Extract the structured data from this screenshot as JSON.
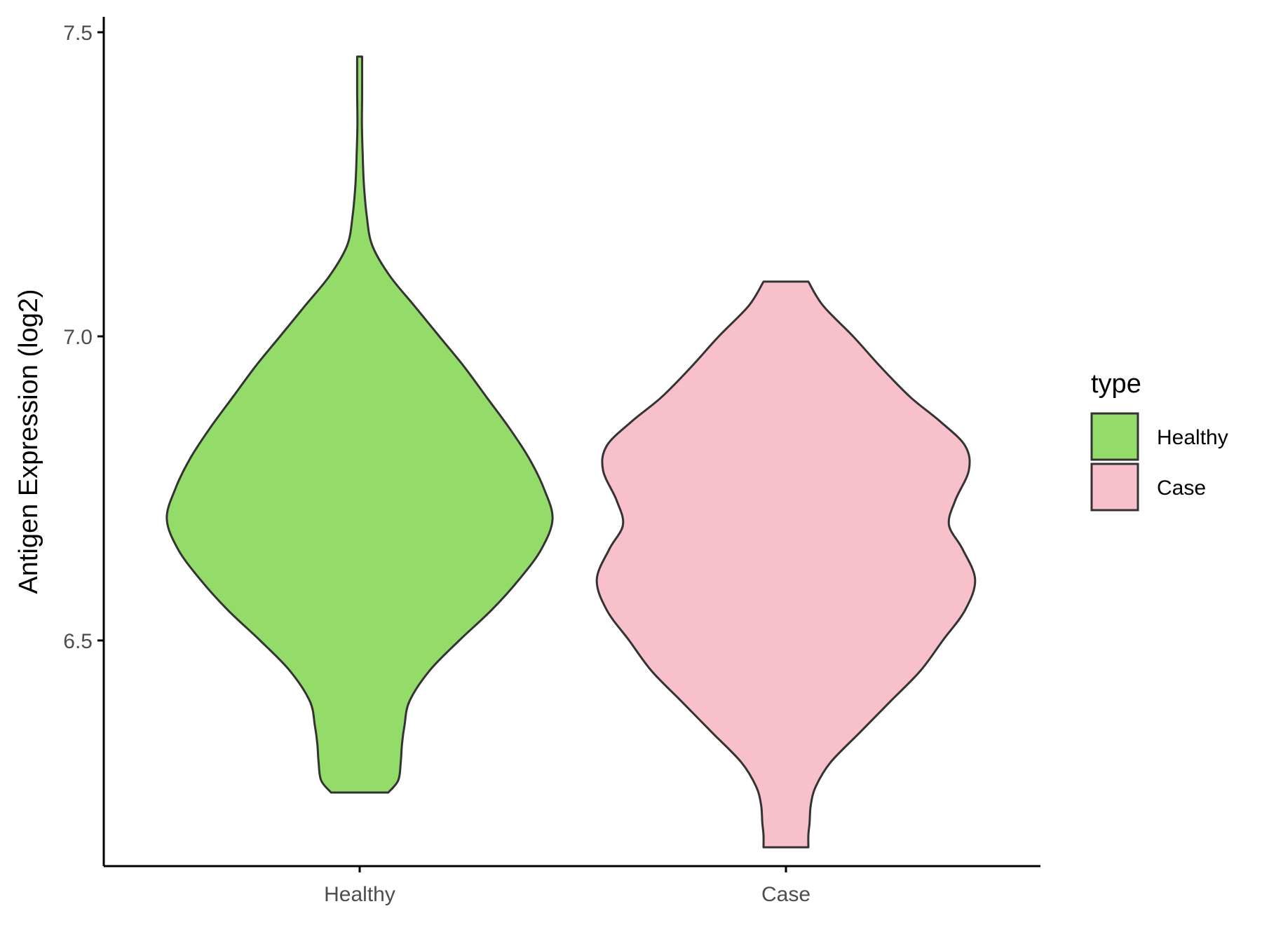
{
  "chart_data": {
    "type": "violin",
    "categories": [
      "Healthy",
      "Case"
    ],
    "ylabel": "Antigen Expression (log2)",
    "xlabel": "",
    "ylim": [
      6.1,
      7.53
    ],
    "yticks": [
      "6.5",
      "7.0",
      "7.5"
    ],
    "ytick_values": [
      6.5,
      7.0,
      7.5
    ],
    "legend": {
      "title": "type",
      "position": "right",
      "entries": [
        "Healthy",
        "Case"
      ]
    },
    "colors": {
      "Healthy": "#93dc6a",
      "Case": "#f7c0cb",
      "outline": "#333333"
    },
    "series": [
      {
        "name": "Healthy",
        "fill": "#93dc6a",
        "y_min": 6.25,
        "y_max": 7.46,
        "density": [
          [
            6.25,
            0.115
          ],
          [
            6.27,
            0.155
          ],
          [
            6.3,
            0.165
          ],
          [
            6.33,
            0.17
          ],
          [
            6.36,
            0.18
          ],
          [
            6.4,
            0.2
          ],
          [
            6.45,
            0.28
          ],
          [
            6.5,
            0.4
          ],
          [
            6.55,
            0.53
          ],
          [
            6.6,
            0.64
          ],
          [
            6.65,
            0.73
          ],
          [
            6.7,
            0.775
          ],
          [
            6.75,
            0.74
          ],
          [
            6.8,
            0.68
          ],
          [
            6.85,
            0.6
          ],
          [
            6.9,
            0.51
          ],
          [
            6.95,
            0.42
          ],
          [
            7.0,
            0.32
          ],
          [
            7.05,
            0.22
          ],
          [
            7.1,
            0.12
          ],
          [
            7.15,
            0.05
          ],
          [
            7.2,
            0.028
          ],
          [
            7.25,
            0.017
          ],
          [
            7.3,
            0.012
          ],
          [
            7.35,
            0.009
          ],
          [
            7.4,
            0.01
          ],
          [
            7.46,
            0.01
          ]
        ]
      },
      {
        "name": "Case",
        "fill": "#f7c0cb",
        "y_min": 6.16,
        "y_max": 7.09,
        "density": [
          [
            6.16,
            0.09
          ],
          [
            6.18,
            0.09
          ],
          [
            6.2,
            0.095
          ],
          [
            6.23,
            0.1
          ],
          [
            6.26,
            0.12
          ],
          [
            6.3,
            0.18
          ],
          [
            6.35,
            0.3
          ],
          [
            6.4,
            0.42
          ],
          [
            6.45,
            0.54
          ],
          [
            6.5,
            0.63
          ],
          [
            6.55,
            0.72
          ],
          [
            6.6,
            0.76
          ],
          [
            6.65,
            0.71
          ],
          [
            6.69,
            0.655
          ],
          [
            6.73,
            0.68
          ],
          [
            6.78,
            0.735
          ],
          [
            6.82,
            0.72
          ],
          [
            6.86,
            0.62
          ],
          [
            6.9,
            0.5
          ],
          [
            6.95,
            0.38
          ],
          [
            7.0,
            0.27
          ],
          [
            7.05,
            0.15
          ],
          [
            7.09,
            0.09
          ]
        ]
      }
    ]
  }
}
